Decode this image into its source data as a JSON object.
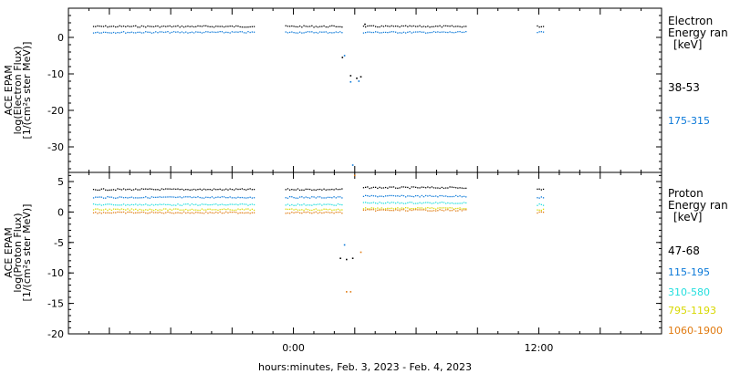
{
  "colors": {
    "black": "#000000",
    "blue": "#0a78d8",
    "cyan": "#22dede",
    "yellow": "#d8d800",
    "orange": "#e07a10"
  },
  "chart_data": [
    {
      "type": "scatter",
      "panel": "electron",
      "ylabel_lines": [
        "ACE EPAM",
        "log(Electron Flux)",
        "[1/(cm²s ster MeV)]"
      ],
      "ylim": [
        -37,
        8
      ],
      "y_ticks": [
        0,
        -10,
        -20,
        -30
      ],
      "y_tick_labels": [
        "0",
        "-10",
        "-20",
        "-30"
      ],
      "xlim_hours": [
        -11,
        18
      ],
      "legend_title": [
        "Electron",
        "Energy ran",
        "[keV]"
      ],
      "series": [
        {
          "name": "38-53",
          "color": "#000000",
          "segments": [
            [
              -9.8,
              -1.9,
              3.0
            ],
            [
              -0.4,
              2.4,
              3.0
            ],
            [
              3.4,
              8.5,
              3.0
            ],
            [
              11.9,
              12.2,
              3.0
            ]
          ],
          "points": [
            [
              2.4,
              -5.5
            ],
            [
              2.8,
              -10.5
            ],
            [
              3.1,
              -11.2
            ],
            [
              3.3,
              -10.8
            ],
            [
              3.5,
              3.6
            ]
          ]
        },
        {
          "name": "175-315",
          "color": "#0a78d8",
          "segments": [
            [
              -9.8,
              -1.9,
              1.4
            ],
            [
              -0.4,
              2.4,
              1.4
            ],
            [
              3.4,
              8.5,
              1.4
            ],
            [
              11.9,
              12.2,
              1.4
            ]
          ],
          "points": [
            [
              2.5,
              -5.0
            ],
            [
              2.8,
              -12.2
            ],
            [
              3.2,
              -12.0
            ],
            [
              2.9,
              -35.0
            ]
          ]
        }
      ]
    },
    {
      "type": "scatter",
      "panel": "proton",
      "ylabel_lines": [
        "ACE EPAM",
        "log(Proton Flux)",
        "[1/(cm²s ster MeV)]"
      ],
      "ylim": [
        -20,
        6.5
      ],
      "y_ticks": [
        5,
        0,
        -5,
        -10,
        -15,
        -20
      ],
      "y_tick_labels": [
        "5",
        "0",
        "-5",
        "-10",
        "-15",
        "-20"
      ],
      "xlim_hours": [
        -11,
        18
      ],
      "x_ticks": [
        0,
        12
      ],
      "x_tick_labels": [
        "0:00",
        "12:00"
      ],
      "xlabel": "hours:minutes, Feb.  3, 2023 - Feb.  4, 2023",
      "legend_title": [
        "Proton",
        "Energy ran",
        "[keV]"
      ],
      "series": [
        {
          "name": "47-68",
          "color": "#000000",
          "segments": [
            [
              -9.8,
              -1.9,
              3.7
            ],
            [
              -0.4,
              2.4,
              3.7
            ],
            [
              3.4,
              8.5,
              4.0
            ],
            [
              11.9,
              12.2,
              3.7
            ]
          ],
          "points": [
            [
              2.3,
              -7.6
            ],
            [
              2.6,
              -7.8
            ],
            [
              2.9,
              -7.6
            ]
          ]
        },
        {
          "name": "115-195",
          "color": "#0a78d8",
          "segments": [
            [
              -9.8,
              -1.9,
              2.4
            ],
            [
              -0.4,
              2.4,
              2.4
            ],
            [
              3.4,
              8.5,
              2.6
            ],
            [
              11.9,
              12.2,
              2.4
            ]
          ],
          "points": [
            [
              2.5,
              -5.4
            ]
          ]
        },
        {
          "name": "310-580",
          "color": "#22dede",
          "segments": [
            [
              -9.8,
              -1.9,
              1.2
            ],
            [
              -0.4,
              2.4,
              1.2
            ],
            [
              3.4,
              8.5,
              1.5
            ],
            [
              11.9,
              12.2,
              1.2
            ]
          ],
          "points": []
        },
        {
          "name": "795-1193",
          "color": "#d8d800",
          "segments": [
            [
              -9.8,
              -1.9,
              0.4
            ],
            [
              -0.4,
              2.4,
              0.4
            ],
            [
              3.4,
              8.5,
              0.6
            ],
            [
              11.9,
              12.2,
              0.4
            ]
          ],
          "points": []
        },
        {
          "name": "1060-1900",
          "color": "#e07a10",
          "segments": [
            [
              -9.8,
              -1.9,
              -0.1
            ],
            [
              -0.4,
              2.4,
              -0.1
            ],
            [
              3.4,
              8.5,
              0.3
            ],
            [
              11.9,
              12.2,
              -0.1
            ]
          ],
          "points": [
            [
              2.6,
              -13.1
            ],
            [
              2.8,
              -13.1
            ],
            [
              3.0,
              6.0
            ],
            [
              3.3,
              -6.6
            ]
          ]
        }
      ]
    }
  ]
}
